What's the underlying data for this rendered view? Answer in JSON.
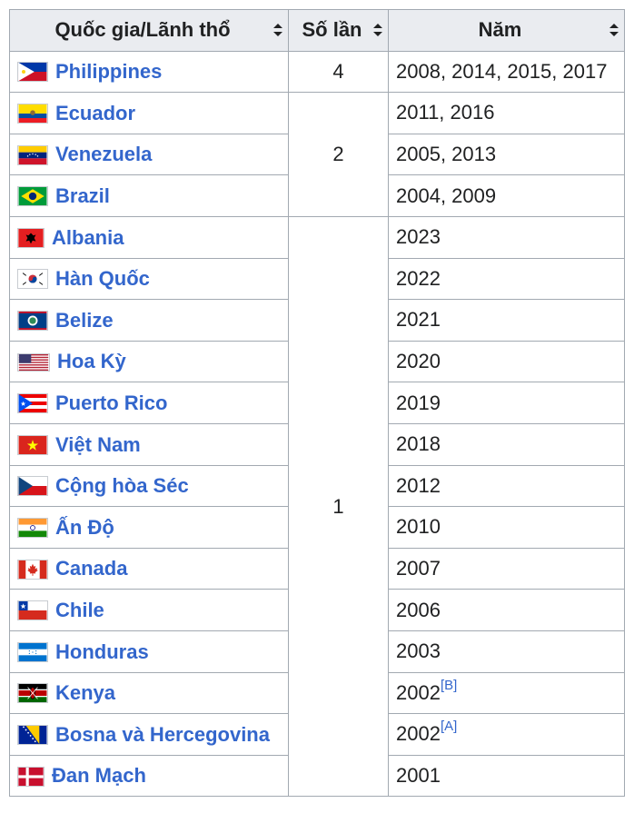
{
  "headers": {
    "country": "Quốc gia/Lãnh thổ",
    "count": "Số lần",
    "years": "Năm"
  },
  "rows": [
    {
      "flag": "flag-philippines",
      "country": "Philippines",
      "count": "4",
      "years": "2008, 2014, 2015, 2017"
    },
    {
      "flag": "flag-ecuador",
      "country": "Ecuador",
      "count": "2",
      "years": "2011, 2016"
    },
    {
      "flag": "flag-venezuela",
      "country": "Venezuela",
      "years": "2005, 2013"
    },
    {
      "flag": "flag-brazil",
      "country": "Brazil",
      "years": "2004, 2009"
    },
    {
      "flag": "flag-albania",
      "country": "Albania",
      "count": "1",
      "years": "2023"
    },
    {
      "flag": "flag-south-korea",
      "country": "Hàn Quốc",
      "years": "2022"
    },
    {
      "flag": "flag-belize",
      "country": "Belize",
      "years": "2021"
    },
    {
      "flag": "flag-usa",
      "country": "Hoa Kỳ",
      "years": "2020"
    },
    {
      "flag": "flag-puerto-rico",
      "country": "Puerto Rico",
      "years": "2019"
    },
    {
      "flag": "flag-vietnam",
      "country": "Việt Nam",
      "years": "2018"
    },
    {
      "flag": "flag-czech",
      "country": "Cộng hòa Séc",
      "years": "2012"
    },
    {
      "flag": "flag-india",
      "country": "Ấn Độ",
      "years": "2010"
    },
    {
      "flag": "flag-canada",
      "country": "Canada",
      "years": "2007"
    },
    {
      "flag": "flag-chile",
      "country": "Chile",
      "years": "2006"
    },
    {
      "flag": "flag-honduras",
      "country": "Honduras",
      "years": "2003"
    },
    {
      "flag": "flag-kenya",
      "country": "Kenya",
      "years": "2002",
      "note": "[B]"
    },
    {
      "flag": "flag-bosnia",
      "country": "Bosna và Hercegovina",
      "years": "2002",
      "note": "[A]"
    },
    {
      "flag": "flag-denmark",
      "country": "Đan Mạch",
      "years": "2001"
    }
  ],
  "colors": {
    "link": "#3366cc",
    "header_bg": "#eaecf0",
    "border": "#a2a9b1"
  }
}
